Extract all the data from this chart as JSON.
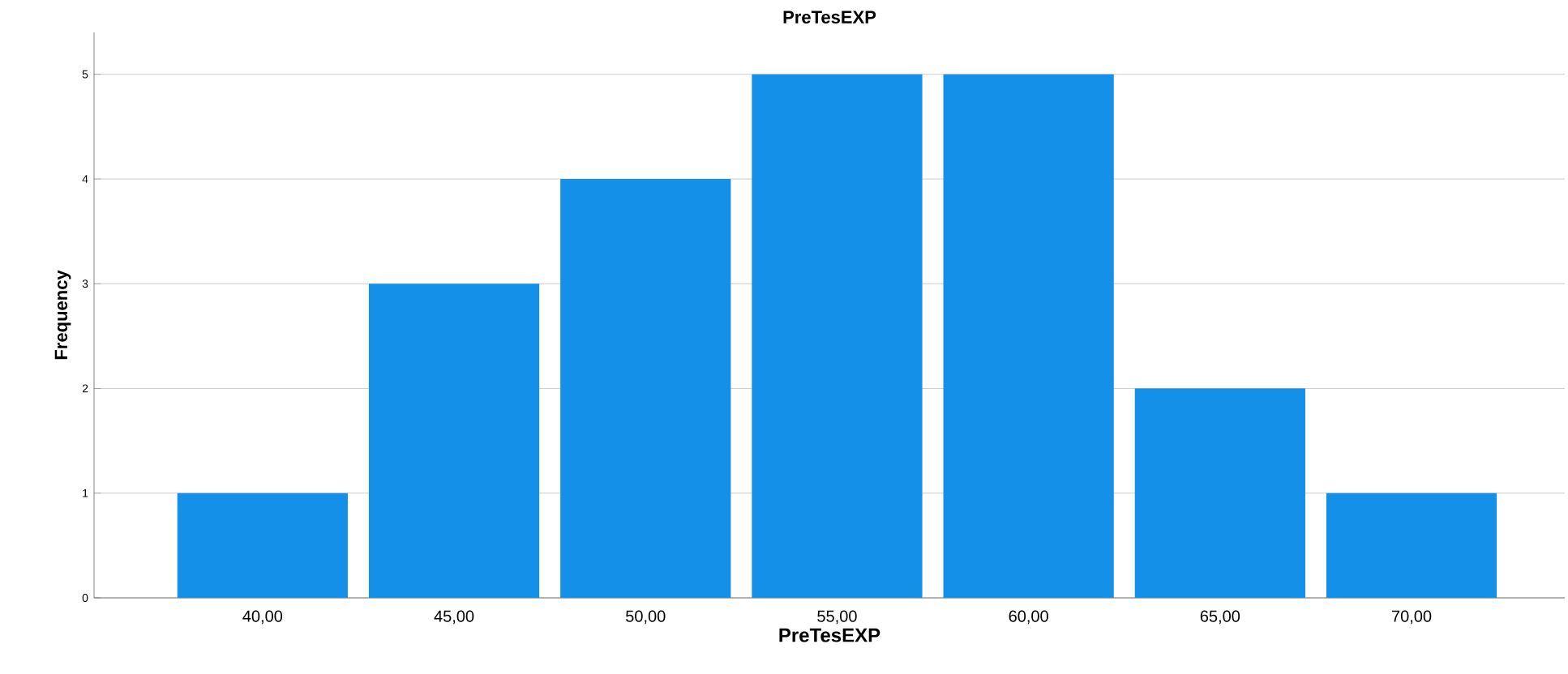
{
  "chart_data": {
    "type": "bar",
    "title": "PreTesEXP",
    "xlabel": "PreTesEXP",
    "ylabel": "Frequency",
    "categories": [
      "40,00",
      "45,00",
      "50,00",
      "55,00",
      "60,00",
      "65,00",
      "70,00"
    ],
    "values": [
      1,
      3,
      4,
      5,
      5,
      2,
      1
    ],
    "color": "#1490e8",
    "ylim": [
      0,
      5.4
    ],
    "yticks": [
      0,
      1,
      2,
      3,
      4,
      5
    ],
    "grid": "y"
  }
}
